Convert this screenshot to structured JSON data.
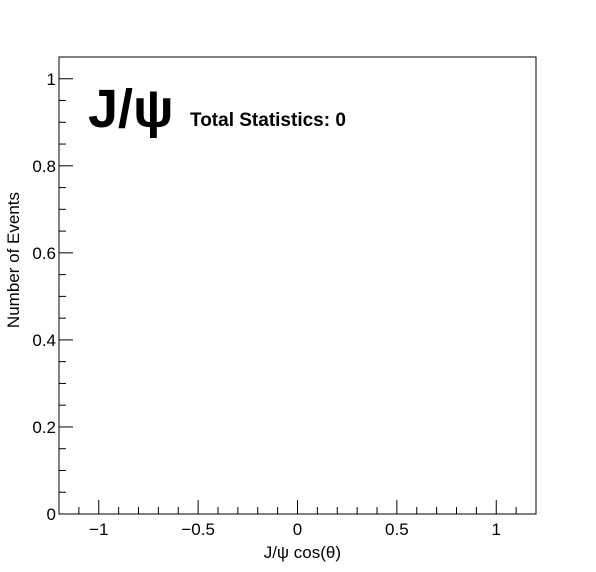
{
  "chart_data": {
    "type": "histogram",
    "title": "",
    "xlabel": "J/ψ cos(θ)",
    "ylabel": "Number of Events",
    "xlim": [
      -1.2,
      1.2
    ],
    "ylim": [
      0,
      1.05
    ],
    "x_ticks": [
      {
        "value": -1,
        "label": "−1"
      },
      {
        "value": -0.5,
        "label": "−0.5"
      },
      {
        "value": 0,
        "label": "0"
      },
      {
        "value": 0.5,
        "label": "0.5"
      },
      {
        "value": 1,
        "label": "1"
      }
    ],
    "x_minor_step": 0.1,
    "y_ticks": [
      {
        "value": 0,
        "label": "0"
      },
      {
        "value": 0.2,
        "label": "0.2"
      },
      {
        "value": 0.4,
        "label": "0.4"
      },
      {
        "value": 0.6,
        "label": "0.6"
      },
      {
        "value": 0.8,
        "label": "0.8"
      },
      {
        "value": 1,
        "label": "1"
      }
    ],
    "y_minor_step": 0.05,
    "grid": false,
    "series": [],
    "annotations": {
      "particle": "J/ψ",
      "statistics": "Total Statistics: 0"
    }
  }
}
